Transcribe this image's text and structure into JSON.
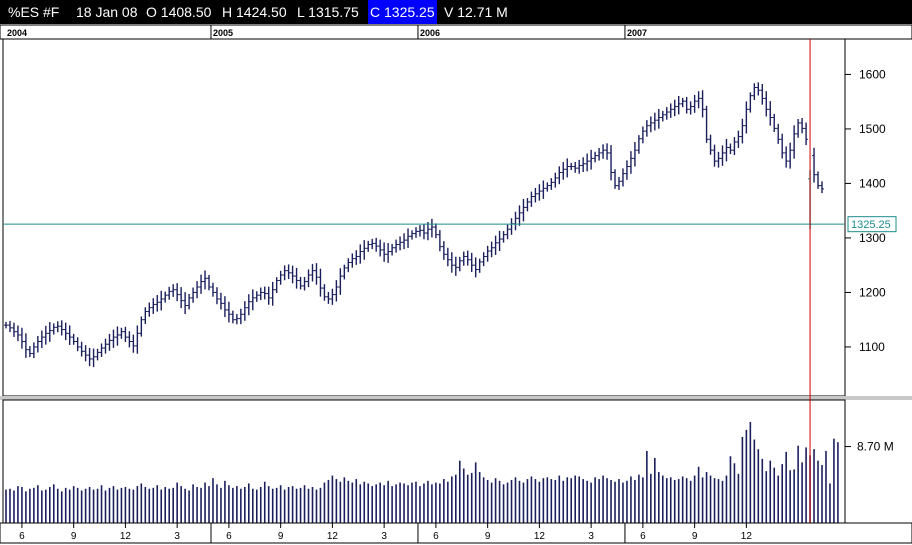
{
  "header": {
    "symbol": "%ES #F",
    "date": "18 Jan 08",
    "open": "O 1408.50",
    "high": "H 1424.50",
    "low": "L 1315.75",
    "close": "C 1325.25",
    "volume": "V 12.71 M"
  },
  "colors": {
    "bars": "#1a1f5c",
    "price_line": "#1e8c8c",
    "cursor_line": "#cc0000",
    "header_bg": "#000000",
    "close_highlight": "#0000ff"
  },
  "chart_data": {
    "type": "ohlc",
    "period": "weekly",
    "years": [
      "2004",
      "2005",
      "2006",
      "2007"
    ],
    "month_ticks": [
      "6",
      "9",
      "12",
      "3",
      "6",
      "9",
      "12",
      "3",
      "6",
      "9",
      "12",
      "3",
      "6",
      "9",
      "12"
    ],
    "price_axis": {
      "ticks": [
        1100,
        1200,
        1300,
        1400,
        1500,
        1600
      ],
      "range": [
        1010,
        1665
      ]
    },
    "last_price_label": "1325.25",
    "current_bar": {
      "open": 1408.5,
      "high": 1424.5,
      "low": 1315.75,
      "close": 1325.25
    },
    "close_series": [
      1140,
      1135,
      1128,
      1122,
      1110,
      1095,
      1088,
      1100,
      1110,
      1118,
      1125,
      1130,
      1136,
      1138,
      1132,
      1125,
      1118,
      1110,
      1100,
      1092,
      1085,
      1078,
      1082,
      1090,
      1098,
      1105,
      1112,
      1118,
      1122,
      1128,
      1118,
      1110,
      1102,
      1125,
      1150,
      1165,
      1172,
      1178,
      1182,
      1188,
      1195,
      1202,
      1205,
      1196,
      1185,
      1176,
      1190,
      1200,
      1210,
      1220,
      1226,
      1210,
      1200,
      1188,
      1180,
      1168,
      1160,
      1150,
      1152,
      1160,
      1172,
      1183,
      1190,
      1195,
      1200,
      1198,
      1190,
      1205,
      1222,
      1232,
      1240,
      1236,
      1230,
      1222,
      1212,
      1220,
      1232,
      1240,
      1228,
      1208,
      1192,
      1188,
      1196,
      1210,
      1230,
      1245,
      1255,
      1262,
      1266,
      1275,
      1281,
      1288,
      1290,
      1285,
      1278,
      1270,
      1275,
      1282,
      1288,
      1292,
      1296,
      1303,
      1308,
      1312,
      1314,
      1309,
      1316,
      1320,
      1306,
      1284,
      1270,
      1260,
      1250,
      1246,
      1258,
      1266,
      1260,
      1250,
      1242,
      1256,
      1266,
      1276,
      1282,
      1291,
      1298,
      1306,
      1316,
      1326,
      1336,
      1346,
      1356,
      1366,
      1376,
      1381,
      1386,
      1391,
      1396,
      1402,
      1410,
      1420,
      1426,
      1431,
      1431,
      1428,
      1433,
      1436,
      1441,
      1446,
      1451,
      1456,
      1461,
      1456,
      1420,
      1396,
      1404,
      1418,
      1431,
      1446,
      1461,
      1482,
      1496,
      1506,
      1511,
      1516,
      1521,
      1526,
      1531,
      1536,
      1541,
      1546,
      1551,
      1536,
      1541,
      1551,
      1556,
      1536,
      1481,
      1461,
      1441,
      1446,
      1456,
      1466,
      1461,
      1476,
      1486,
      1506,
      1536,
      1561,
      1576,
      1571,
      1556,
      1536,
      1521,
      1501,
      1481,
      1456,
      1441,
      1461,
      1491,
      1511,
      1501,
      1481,
      1451,
      1416,
      1396,
      1390
    ],
    "volume_axis": {
      "tick_label": "8.70 M",
      "tick_value": 8.7,
      "range": [
        0,
        14
      ]
    },
    "volume_series": [
      3.8,
      3.9,
      3.7,
      4.2,
      4.1,
      3.6,
      3.9,
      4.0,
      4.3,
      3.7,
      3.8,
      4.1,
      4.4,
      3.9,
      3.6,
      4.0,
      3.8,
      4.2,
      4.0,
      3.7,
      3.9,
      4.1,
      3.8,
      3.9,
      4.3,
      3.7,
      4.0,
      4.2,
      3.8,
      4.0,
      4.1,
      3.9,
      3.8,
      4.2,
      4.5,
      4.1,
      3.9,
      4.0,
      4.3,
      3.8,
      4.1,
      3.9,
      4.0,
      4.6,
      4.2,
      3.9,
      3.7,
      4.4,
      4.1,
      4.0,
      4.6,
      4.2,
      5.1,
      4.4,
      4.0,
      4.8,
      4.3,
      4.0,
      4.2,
      3.9,
      4.1,
      4.5,
      3.9,
      3.8,
      4.1,
      4.7,
      4.2,
      3.9,
      4.0,
      4.3,
      3.8,
      4.1,
      4.2,
      3.9,
      4.0,
      4.3,
      3.9,
      4.1,
      3.8,
      4.0,
      4.6,
      4.9,
      5.4,
      5.0,
      4.7,
      5.2,
      4.8,
      4.6,
      5.0,
      4.4,
      4.7,
      4.5,
      4.2,
      4.4,
      4.6,
      4.3,
      4.8,
      4.2,
      4.4,
      4.6,
      4.5,
      4.3,
      4.6,
      4.7,
      4.2,
      4.5,
      4.8,
      4.4,
      4.6,
      4.5,
      5.0,
      4.7,
      5.3,
      5.5,
      7.1,
      6.2,
      5.5,
      5.7,
      6.9,
      5.8,
      5.2,
      4.9,
      4.6,
      5.1,
      4.8,
      4.4,
      4.6,
      4.9,
      5.2,
      4.8,
      4.6,
      5.0,
      5.3,
      5.0,
      4.7,
      5.1,
      5.2,
      5.0,
      4.9,
      5.4,
      4.8,
      5.2,
      5.1,
      5.4,
      5.3,
      5.0,
      4.8,
      4.6,
      5.2,
      5.0,
      5.4,
      5.1,
      4.9,
      4.7,
      5.0,
      4.6,
      4.8,
      5.3,
      4.9,
      5.5,
      5.2,
      8.2,
      5.6,
      7.4,
      5.8,
      5.4,
      5.1,
      5.2,
      4.9,
      5.0,
      5.3,
      5.1,
      4.8,
      5.4,
      6.4,
      5.2,
      5.8,
      5.4,
      5.1,
      5.0,
      4.8,
      5.4,
      7.6,
      6.8,
      5.6,
      9.8,
      10.6,
      11.5,
      9.5,
      8.4,
      7.3,
      5.9,
      7.1,
      6.3,
      5.4,
      6.7,
      8.1,
      6.0,
      6.1,
      8.8,
      6.9,
      8.6,
      7.7,
      8.4,
      7.1,
      6.6,
      8.2,
      4.5,
      9.6,
      9.2
    ],
    "current_index": 202
  }
}
